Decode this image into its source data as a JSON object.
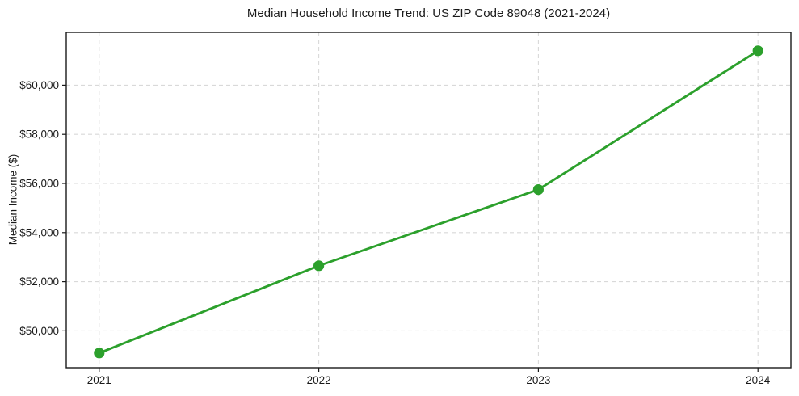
{
  "chart_data": {
    "type": "line",
    "title": "Median Household Income Trend: US ZIP Code 89048 (2021-2024)",
    "xlabel": "",
    "ylabel": "Median Income ($)",
    "x": [
      2021,
      2022,
      2023,
      2024
    ],
    "x_tick_labels": [
      "2021",
      "2022",
      "2023",
      "2024"
    ],
    "series": [
      {
        "name": "Median Household Income",
        "values": [
          49100,
          52650,
          55750,
          61400
        ]
      }
    ],
    "y_ticks": [
      50000,
      52000,
      54000,
      56000,
      58000,
      60000
    ],
    "y_tick_labels": [
      "$50,000",
      "$52,000",
      "$54,000",
      "$56,000",
      "$58,000",
      "$60,000"
    ],
    "xlim": [
      2020.85,
      2024.15
    ],
    "ylim": [
      48500,
      62150
    ],
    "grid": true,
    "grid_style": "dashed",
    "legend": "none",
    "line_color": "#2ca02c",
    "marker": "circle",
    "marker_color": "#2ca02c",
    "background_color": "#ffffff"
  }
}
